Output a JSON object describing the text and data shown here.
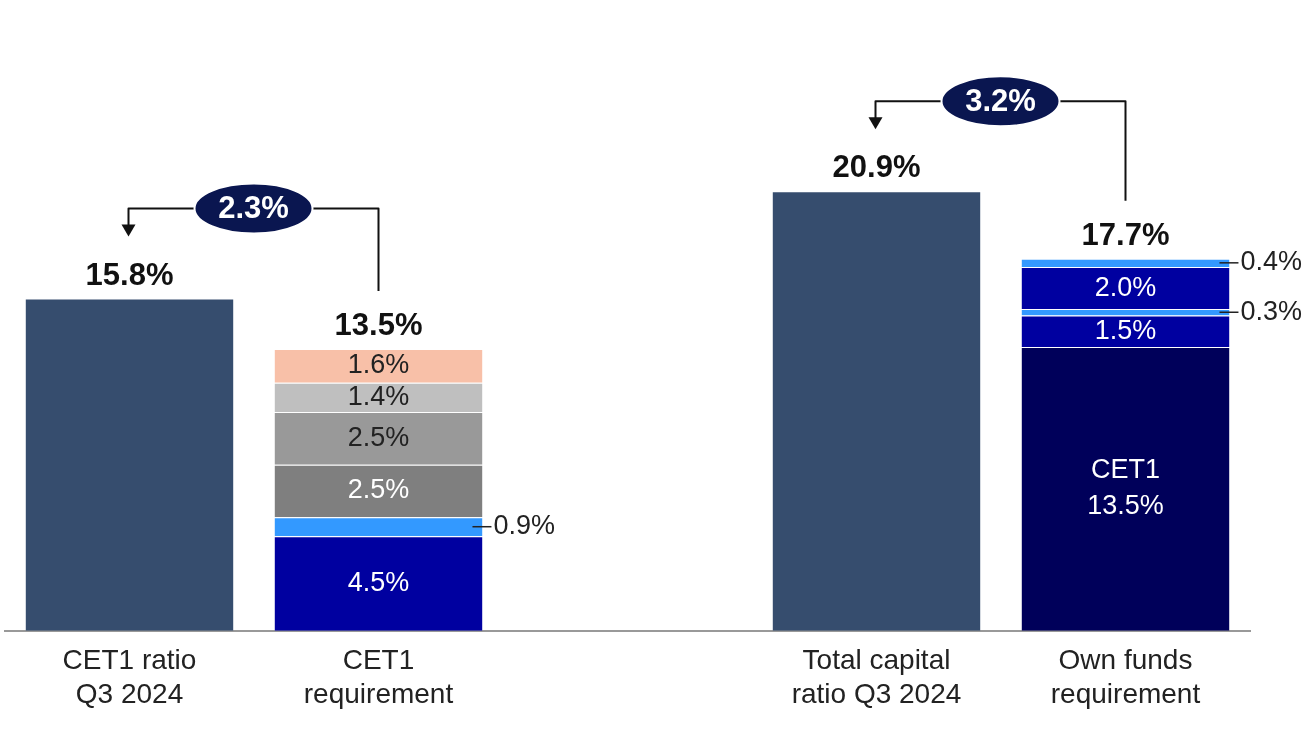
{
  "chart_data": {
    "type": "bar",
    "stacked": true,
    "categories": [
      "CET1 ratio Q3 2024",
      "CET1 requirement",
      null,
      "Total capital ratio Q3 2024",
      "Own funds requirement"
    ],
    "series": [
      {
        "colors": [
          "#364d6e",
          null,
          null,
          "#364d6e",
          null
        ],
        "values": [
          15.8,
          null,
          null,
          20.9,
          null
        ]
      },
      {
        "colors": [
          null,
          "#0000a0",
          null,
          null,
          "#00005a"
        ],
        "values": [
          null,
          4.5,
          null,
          null,
          13.5
        ],
        "value_labels": [
          null,
          "4.5%",
          null,
          null,
          "CET1 13.5%"
        ]
      },
      {
        "colors": [
          null,
          "#3399ff",
          null,
          null,
          "#0000a0"
        ],
        "values": [
          null,
          0.9,
          null,
          null,
          1.5
        ],
        "value_labels": [
          null,
          "0.9%",
          null,
          null,
          "1.5%"
        ]
      },
      {
        "colors": [
          null,
          "#7f7f7f",
          null,
          null,
          "#3399ff"
        ],
        "values": [
          null,
          2.5,
          null,
          null,
          0.3
        ],
        "value_labels": [
          null,
          "2.5%",
          null,
          null,
          "0.3%"
        ]
      },
      {
        "colors": [
          null,
          "#999999",
          null,
          null,
          "#0000a0"
        ],
        "values": [
          null,
          2.5,
          null,
          null,
          2.0
        ],
        "value_labels": [
          null,
          "2.5%",
          null,
          null,
          "2.0%"
        ]
      },
      {
        "colors": [
          null,
          "#bfbfbf",
          null,
          null,
          "#3399ff"
        ],
        "values": [
          null,
          1.4,
          null,
          null,
          0.4
        ],
        "value_labels": [
          null,
          "1.4%",
          null,
          null,
          "0.4%"
        ]
      },
      {
        "colors": [
          null,
          "#f8c0a8",
          null,
          null,
          null
        ],
        "values": [
          null,
          1.6,
          null,
          null,
          null
        ],
        "value_labels": [
          null,
          "1.6%",
          null,
          null,
          null
        ]
      }
    ],
    "totals": [
      "15.8%",
      "13.5%",
      null,
      "20.9%",
      "17.7%"
    ],
    "annotations": [
      "2.3%",
      "3.2%"
    ]
  }
}
